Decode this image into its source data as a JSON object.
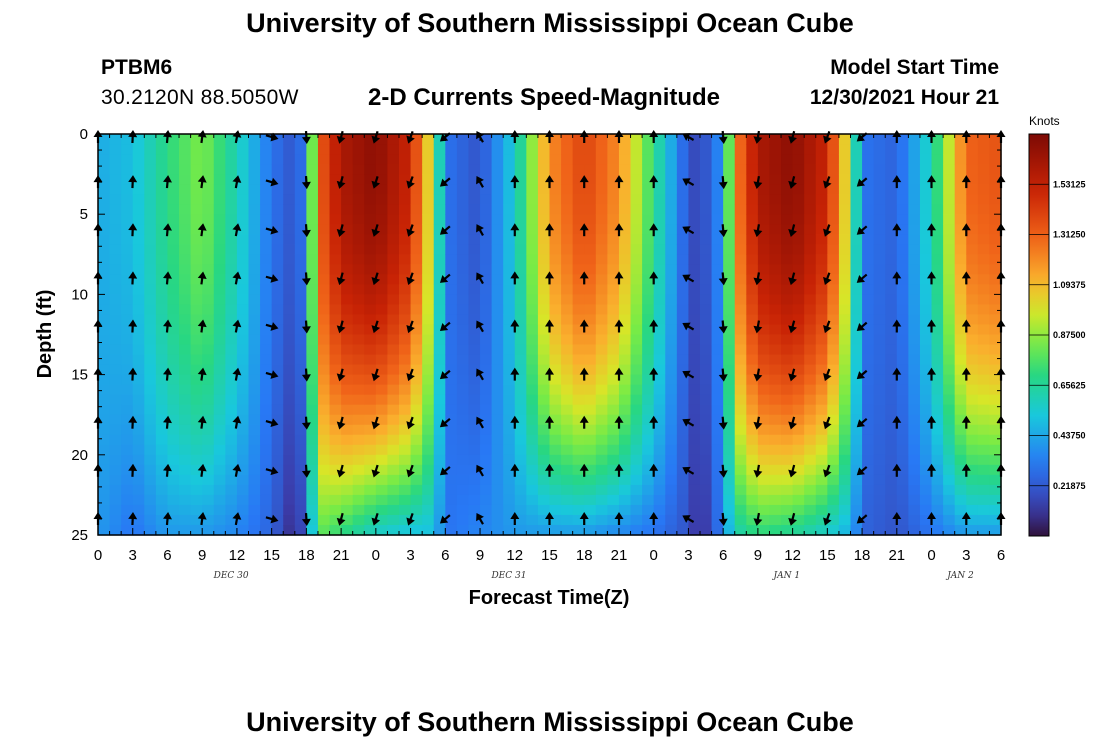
{
  "header": {
    "title": "University of Southern Mississippi Ocean Cube",
    "station": "PTBM6",
    "coords": "30.2120N  88.5050W",
    "subtitle": "2-D Currents Speed-Magnitude",
    "model_start_label": "Model Start Time",
    "model_start_value": "12/30/2021 Hour 21"
  },
  "footer": {
    "title": "University of Southern Mississippi Ocean Cube"
  },
  "chart_data": {
    "type": "heatmap",
    "title": "2-D Currents Speed-Magnitude",
    "xlabel": "Forecast Time(Z)",
    "ylabel": "Depth (ft)",
    "x_hours_range": [
      0,
      78
    ],
    "ylim": [
      0,
      25
    ],
    "y_ticks": [
      "0",
      "5",
      "10",
      "15",
      "20",
      "25"
    ],
    "x_tick_labels": [
      "0",
      "3",
      "6",
      "9",
      "12",
      "15",
      "18",
      "21",
      "0",
      "3",
      "6",
      "9",
      "12",
      "15",
      "18",
      "21",
      "0",
      "3",
      "6",
      "9",
      "12",
      "15",
      "18",
      "21",
      "0",
      "3",
      "6"
    ],
    "date_labels": [
      {
        "label": "DEC 30",
        "hour": 11.5
      },
      {
        "label": "DEC 31",
        "hour": 35.5
      },
      {
        "label": "JAN 1",
        "hour": 59.5
      },
      {
        "label": "JAN 2",
        "hour": 74.5
      }
    ],
    "colorbar": {
      "unit": "Knots",
      "ticks": [
        "1.53125",
        "1.31250",
        "1.09375",
        "0.87500",
        "0.65625",
        "0.43750",
        "0.21875"
      ],
      "tick_values": [
        1.53125,
        1.3125,
        1.09375,
        0.875,
        0.65625,
        0.4375,
        0.21875
      ],
      "min": 0,
      "max": 1.75
    },
    "speed_keyframes": [
      {
        "hour": 0,
        "surface": 0.45,
        "bottom": 0.4
      },
      {
        "hour": 3,
        "surface": 0.5,
        "bottom": 0.3
      },
      {
        "hour": 6,
        "surface": 0.7,
        "bottom": 0.4
      },
      {
        "hour": 9,
        "surface": 0.85,
        "bottom": 0.4
      },
      {
        "hour": 12,
        "surface": 0.6,
        "bottom": 0.35
      },
      {
        "hour": 15,
        "surface": 0.3,
        "bottom": 0.25
      },
      {
        "hour": 17,
        "surface": 0.2,
        "bottom": 0.05
      },
      {
        "hour": 18,
        "surface": 0.35,
        "bottom": 0.25
      },
      {
        "hour": 19,
        "surface": 1.3,
        "bottom": 0.8
      },
      {
        "hour": 21,
        "surface": 1.6,
        "bottom": 0.7
      },
      {
        "hour": 24,
        "surface": 1.7,
        "bottom": 0.55
      },
      {
        "hour": 27,
        "surface": 1.5,
        "bottom": 0.5
      },
      {
        "hour": 29,
        "surface": 0.9,
        "bottom": 0.5
      },
      {
        "hour": 30,
        "surface": 0.3,
        "bottom": 0.3
      },
      {
        "hour": 33,
        "surface": 0.2,
        "bottom": 0.35
      },
      {
        "hour": 36,
        "surface": 0.55,
        "bottom": 0.4
      },
      {
        "hour": 39,
        "surface": 1.2,
        "bottom": 0.4
      },
      {
        "hour": 42,
        "surface": 1.4,
        "bottom": 0.4
      },
      {
        "hour": 45,
        "surface": 1.2,
        "bottom": 0.35
      },
      {
        "hour": 48,
        "surface": 0.7,
        "bottom": 0.3
      },
      {
        "hour": 51,
        "surface": 0.2,
        "bottom": 0.2
      },
      {
        "hour": 52,
        "surface": 0.15,
        "bottom": 0.05
      },
      {
        "hour": 54,
        "surface": 0.4,
        "bottom": 0.35
      },
      {
        "hour": 55,
        "surface": 1.2,
        "bottom": 0.6
      },
      {
        "hour": 57,
        "surface": 1.6,
        "bottom": 0.7
      },
      {
        "hour": 60,
        "surface": 1.7,
        "bottom": 0.65
      },
      {
        "hour": 63,
        "surface": 1.5,
        "bottom": 0.55
      },
      {
        "hour": 65,
        "surface": 0.9,
        "bottom": 0.45
      },
      {
        "hour": 66,
        "surface": 0.3,
        "bottom": 0.25
      },
      {
        "hour": 69,
        "surface": 0.25,
        "bottom": 0.2
      },
      {
        "hour": 72,
        "surface": 0.6,
        "bottom": 0.3
      },
      {
        "hour": 75,
        "surface": 1.3,
        "bottom": 0.4
      },
      {
        "hour": 78,
        "surface": 1.35,
        "bottom": 0.4
      }
    ],
    "arrow_depths_ft": [
      0,
      3,
      6,
      9,
      12,
      15,
      18,
      21,
      24
    ],
    "arrow_direction_keyframes_deg": [
      {
        "hour": 0,
        "dir": 0
      },
      {
        "hour": 12,
        "dir": 10
      },
      {
        "hour": 17,
        "dir": 170
      },
      {
        "hour": 21,
        "dir": 195
      },
      {
        "hour": 27,
        "dir": 200
      },
      {
        "hour": 30,
        "dir": 230
      },
      {
        "hour": 33,
        "dir": 330
      },
      {
        "hour": 36,
        "dir": 0
      },
      {
        "hour": 48,
        "dir": 0
      },
      {
        "hour": 51,
        "dir": 300
      },
      {
        "hour": 53,
        "dir": 170
      },
      {
        "hour": 57,
        "dir": 190
      },
      {
        "hour": 63,
        "dir": 200
      },
      {
        "hour": 66,
        "dir": 230
      },
      {
        "hour": 69,
        "dir": 0
      },
      {
        "hour": 78,
        "dir": 0
      }
    ]
  }
}
